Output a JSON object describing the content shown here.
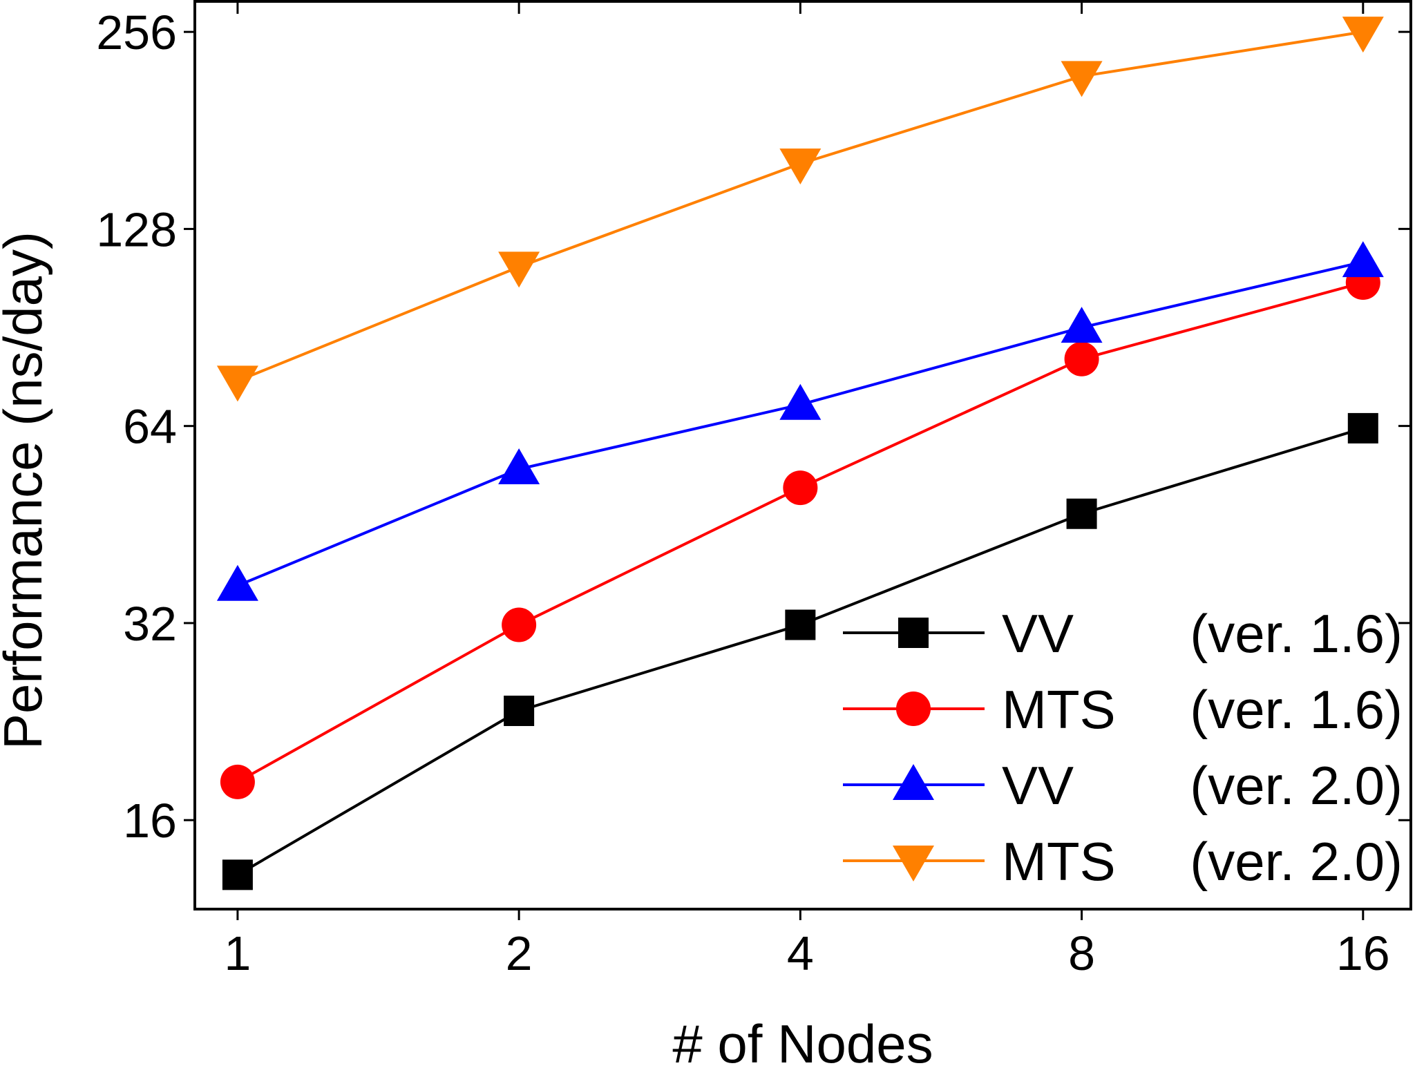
{
  "chart_data": {
    "type": "line",
    "xlabel": "# of Nodes",
    "ylabel": "Performance (ns/day)",
    "x_scale": "log2",
    "y_scale": "log2",
    "x": [
      1,
      2,
      4,
      8,
      16
    ],
    "x_ticks": [
      "1",
      "2",
      "4",
      "8",
      "16"
    ],
    "y_ticks": [
      "16",
      "32",
      "64",
      "128",
      "256"
    ],
    "xlim": [
      0.9,
      18
    ],
    "ylim": [
      11.7,
      285
    ],
    "grid": false,
    "legend_position": "bottom-right",
    "series": [
      {
        "name": "VV",
        "version": "(ver. 1.6)",
        "marker": "square",
        "color": "#000000",
        "values": [
          13.2,
          23.5,
          31.8,
          47.0,
          63.5
        ]
      },
      {
        "name": "MTS",
        "version": "(ver. 1.6)",
        "marker": "circle",
        "color": "#ff0000",
        "values": [
          18.3,
          31.8,
          51.5,
          81.0,
          106.0
        ]
      },
      {
        "name": "VV",
        "version": "(ver. 2.0)",
        "marker": "triangle-up",
        "color": "#0000ff",
        "values": [
          36.5,
          55.0,
          69.0,
          90.5,
          114.0
        ]
      },
      {
        "name": "MTS",
        "version": "(ver. 2.0)",
        "marker": "triangle-down",
        "color": "#ff8000",
        "values": [
          75.0,
          112.0,
          161.0,
          219.0,
          256.0
        ]
      }
    ]
  }
}
